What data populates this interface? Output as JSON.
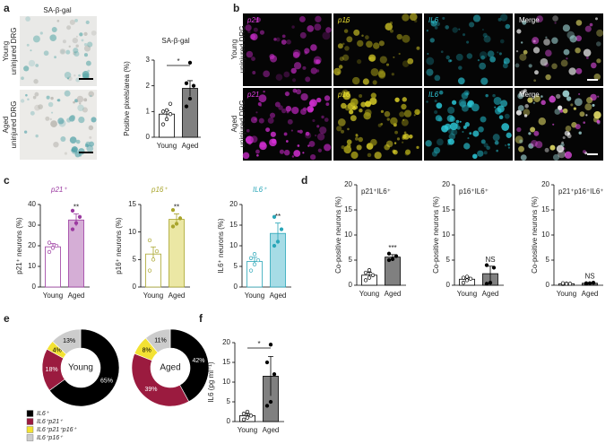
{
  "figure": {
    "panels": [
      "a",
      "b",
      "c",
      "d",
      "e",
      "f"
    ],
    "stain": "SA-β-gal",
    "rows": [
      [
        "Young",
        "uninjured DRG"
      ],
      [
        "Aged",
        "uninjured DRG"
      ]
    ],
    "channels": [
      "p21",
      "p16",
      "IL6",
      "Merge"
    ]
  },
  "chart_data": [
    {
      "type": "bar",
      "title": "SA-β-gal",
      "ylabel": "Positive pixels/area (%)",
      "categories": [
        "Young",
        "Aged"
      ],
      "values": [
        0.9,
        1.9
      ],
      "errors": [
        0.13,
        0.3
      ],
      "points": [
        [
          0.5,
          0.7,
          0.9,
          1.0,
          1.05,
          1.3
        ],
        [
          1.2,
          1.5,
          2.0,
          2.1,
          2.9
        ]
      ],
      "colors": [
        "#ffffff",
        "#808080"
      ],
      "edge_color": "#000000",
      "ylim": [
        0,
        3
      ],
      "yticks": [
        0,
        1,
        2,
        3
      ],
      "significance": "*",
      "bracket": true
    },
    {
      "type": "bar",
      "title": "p21⁺",
      "title_color": "#9b3aa0",
      "ylabel": "p21⁺ neurons (%)",
      "categories": [
        "Young",
        "Aged"
      ],
      "values": [
        19.5,
        32.5
      ],
      "errors": [
        1.5,
        3
      ],
      "points": [
        [
          17,
          19,
          20,
          21.5
        ],
        [
          28,
          31,
          34,
          37
        ]
      ],
      "colors": [
        "#ffffff",
        "#d5aed6"
      ],
      "edge_color": "#9b3aa0",
      "ylim": [
        0,
        40
      ],
      "yticks": [
        0,
        10,
        20,
        30,
        40
      ],
      "significance": "**",
      "bracket": false
    },
    {
      "type": "bar",
      "title": "p16⁺",
      "title_color": "#a9a52c",
      "ylabel": "p16⁺ neurons (%)",
      "categories": [
        "Young",
        "Aged"
      ],
      "values": [
        6,
        12.3
      ],
      "errors": [
        1.3,
        1
      ],
      "points": [
        [
          3,
          5,
          6.5,
          8.5
        ],
        [
          11,
          11.5,
          12.5,
          14
        ]
      ],
      "colors": [
        "#ffffff",
        "#ebe7a4"
      ],
      "edge_color": "#a9a52c",
      "ylim": [
        0,
        15
      ],
      "yticks": [
        0,
        5,
        10,
        15
      ],
      "significance": "**",
      "bracket": false
    },
    {
      "type": "bar",
      "title": "IL6⁺",
      "title_color": "#2aa6b8",
      "ylabel": "IL6⁺ neurons (%)",
      "categories": [
        "Young",
        "Aged"
      ],
      "values": [
        6.2,
        13
      ],
      "errors": [
        1,
        2.5
      ],
      "points": [
        [
          4,
          5.5,
          6.5,
          7,
          8
        ],
        [
          10,
          11,
          14,
          17
        ]
      ],
      "colors": [
        "#ffffff",
        "#a6dce6"
      ],
      "edge_color": "#2aa6b8",
      "ylim": [
        0,
        20
      ],
      "yticks": [
        0,
        5,
        10,
        15,
        20
      ],
      "significance": "**",
      "bracket": false
    },
    {
      "type": "bar",
      "title": "p21⁺IL6⁺",
      "ylabel": "Co-positive neurons (%)",
      "categories": [
        "Young",
        "Aged"
      ],
      "values": [
        2,
        5.6
      ],
      "errors": [
        0.6,
        0.5
      ],
      "points": [
        [
          1,
          1.5,
          2,
          2.5,
          3
        ],
        [
          5,
          5.2,
          5.8,
          6.3
        ]
      ],
      "colors": [
        "#ffffff",
        "#808080"
      ],
      "edge_color": "#000000",
      "ylim": [
        0,
        20
      ],
      "yticks": [
        0,
        5,
        10,
        15,
        20
      ],
      "significance": "***",
      "bracket": false
    },
    {
      "type": "bar",
      "title": "p16⁺IL6⁺",
      "ylabel": "Co-positive neurons (%)",
      "categories": [
        "Young",
        "Aged"
      ],
      "values": [
        1.2,
        2.3
      ],
      "errors": [
        0.4,
        1.5
      ],
      "points": [
        [
          0.5,
          1,
          1.3,
          1.5,
          1.7
        ],
        [
          0.3,
          0.5,
          3.5,
          4
        ]
      ],
      "colors": [
        "#ffffff",
        "#808080"
      ],
      "edge_color": "#000000",
      "ylim": [
        0,
        20
      ],
      "yticks": [
        0,
        5,
        10,
        15,
        20
      ],
      "significance": "NS",
      "bracket": false
    },
    {
      "type": "bar",
      "title": "p21⁺p16⁺IL6⁺",
      "ylabel": "Co-positive neurons (%)",
      "categories": [
        "Young",
        "Aged"
      ],
      "values": [
        0.3,
        0.4
      ],
      "errors": [
        0.1,
        0.1
      ],
      "points": [
        [
          0.2,
          0.3,
          0.3,
          0.4,
          0.3
        ],
        [
          0.3,
          0.4,
          0.5,
          0.4
        ]
      ],
      "colors": [
        "#ffffff",
        "#808080"
      ],
      "edge_color": "#000000",
      "ylim": [
        0,
        20
      ],
      "yticks": [
        0,
        5,
        10,
        15,
        20
      ],
      "significance": "NS",
      "bracket": false
    },
    {
      "type": "pie",
      "categories": [
        "IL6⁺",
        "IL6⁺p21⁺",
        "IL6⁺p21⁺p16⁺",
        "IL6⁺p16⁺"
      ],
      "colors": [
        "#000000",
        "#9b1b3f",
        "#f3e233",
        "#cccccc"
      ],
      "label_colors": [
        "#ffffff",
        "#ffffff",
        "#000000",
        "#000000"
      ],
      "series": [
        {
          "name": "Young",
          "values": [
            65,
            18,
            4,
            13
          ],
          "value_labels": [
            "65%",
            "18%",
            "4%",
            "13%"
          ]
        },
        {
          "name": "Aged",
          "values": [
            42,
            39,
            8,
            11
          ],
          "value_labels": [
            "42%",
            "39%",
            "8%",
            "11%"
          ]
        }
      ]
    },
    {
      "type": "bar",
      "ylabel": "IL6 (pg ml⁻¹)",
      "categories": [
        "Young",
        "Aged"
      ],
      "values": [
        1.5,
        11.5
      ],
      "errors": [
        0.5,
        5
      ],
      "points": [
        [
          0.5,
          1,
          1.5,
          2,
          2.5
        ],
        [
          4,
          5,
          12,
          15,
          19.5
        ]
      ],
      "colors": [
        "#ffffff",
        "#808080"
      ],
      "edge_color": "#000000",
      "ylim": [
        0,
        20
      ],
      "yticks": [
        0,
        5,
        10,
        15,
        20
      ],
      "significance": "*",
      "bracket": true
    }
  ]
}
